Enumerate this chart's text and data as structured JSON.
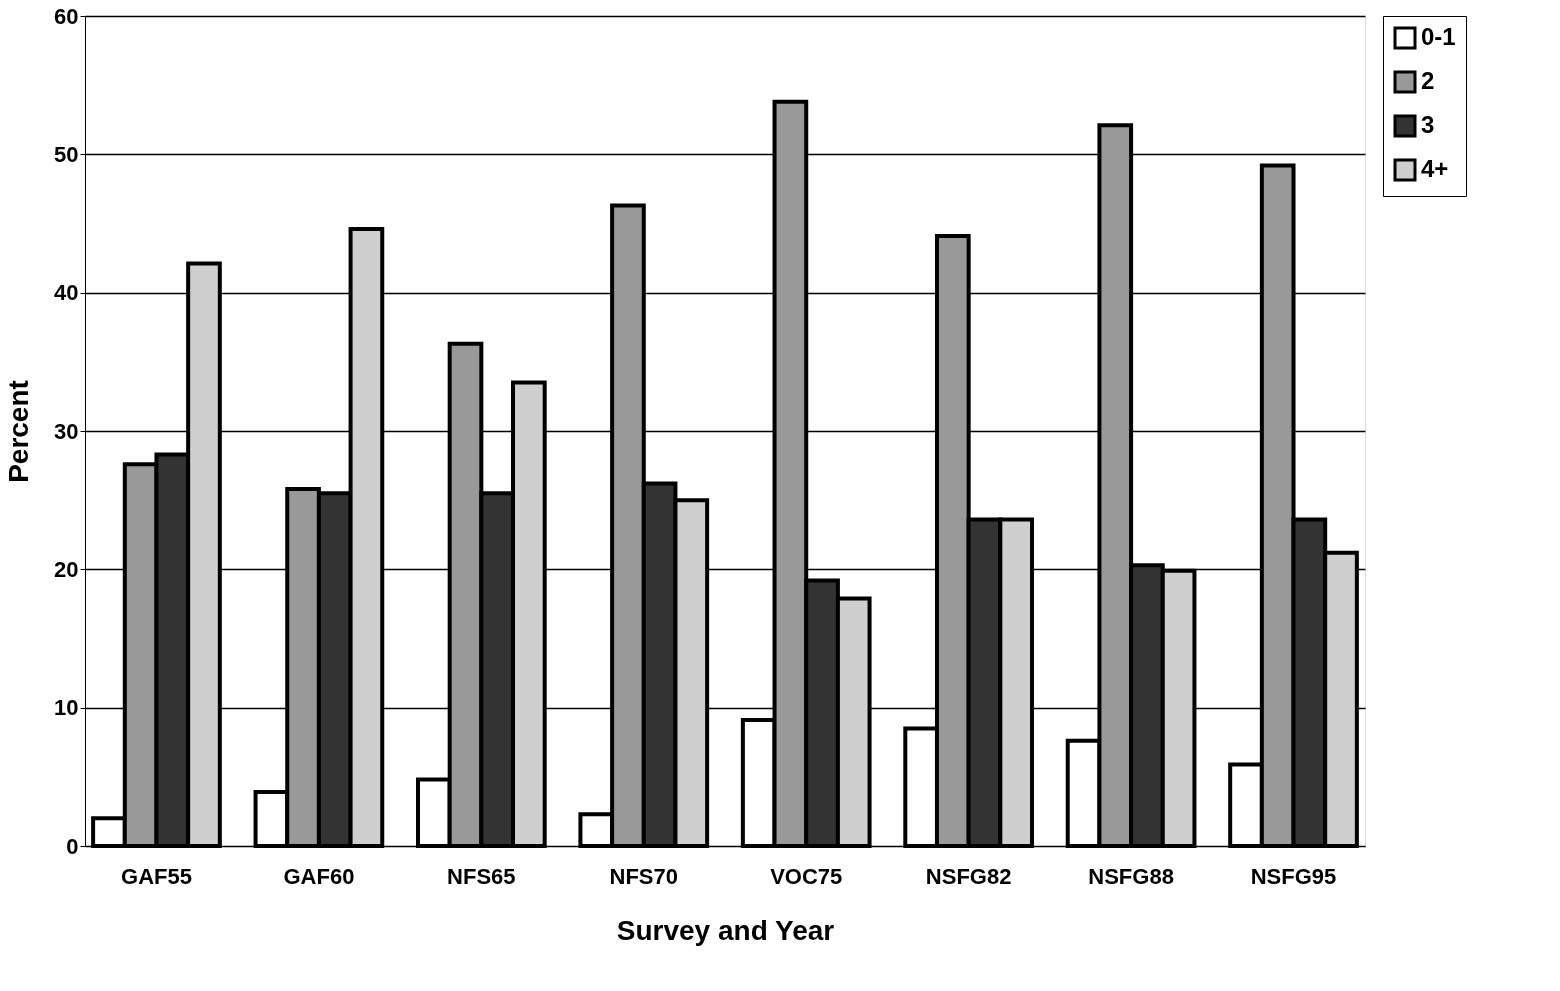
{
  "chart_data": {
    "type": "bar",
    "xlabel": "Survey and Year",
    "ylabel": "Percent",
    "categories": [
      "GAF55",
      "GAF60",
      "NFS65",
      "NFS70",
      "VOC75",
      "NSFG82",
      "NSFG88",
      "NSFG95"
    ],
    "series": [
      {
        "name": "0-1",
        "color": "#ffffff",
        "values": [
          2.0,
          3.9,
          4.8,
          2.3,
          9.1,
          8.5,
          7.6,
          5.9
        ]
      },
      {
        "name": "2",
        "color": "#999999",
        "values": [
          27.6,
          25.8,
          36.3,
          46.3,
          53.8,
          44.1,
          52.1,
          49.2
        ]
      },
      {
        "name": "3",
        "color": "#333333",
        "values": [
          28.3,
          25.5,
          25.5,
          26.2,
          19.2,
          23.6,
          20.3,
          23.6
        ]
      },
      {
        "name": "4+",
        "color": "#cfcfcf",
        "values": [
          42.1,
          44.6,
          33.5,
          25.0,
          17.9,
          23.6,
          19.9,
          21.2
        ]
      }
    ],
    "ylim": [
      0,
      60
    ],
    "yticks": [
      0,
      10,
      20,
      30,
      40,
      50,
      60
    ],
    "grid": "y",
    "legend": "right"
  }
}
